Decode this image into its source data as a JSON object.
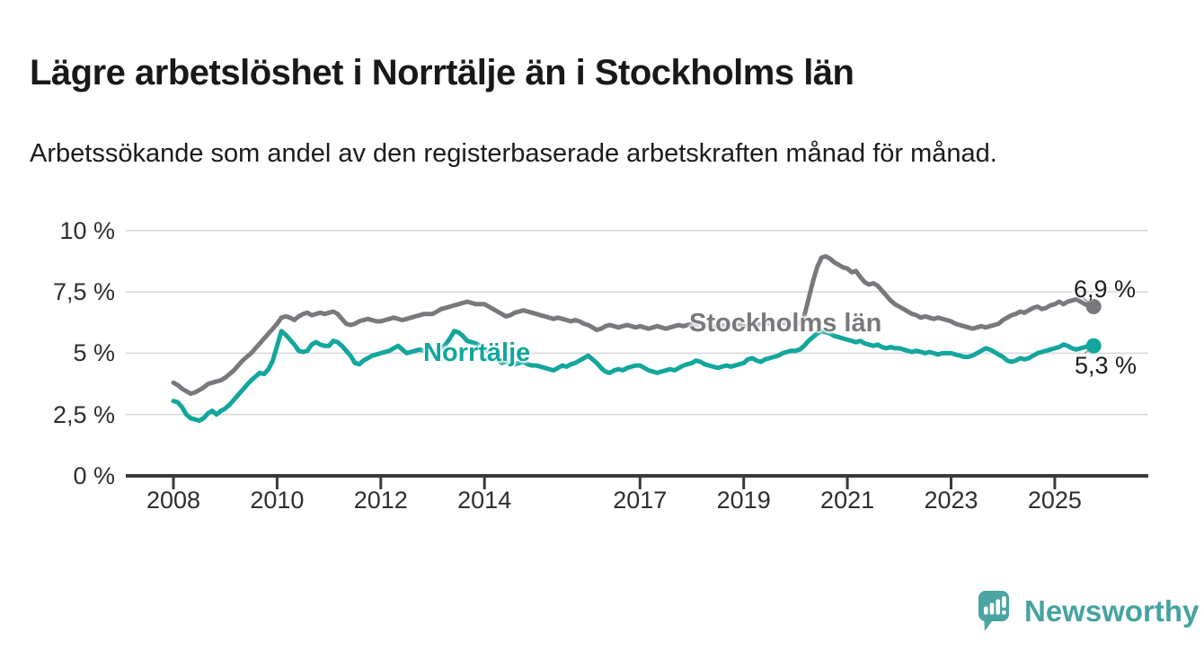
{
  "header": {
    "title": "Lägre arbetslöshet i Norrtälje än i Stockholms län",
    "subtitle": "Arbetssökande som andel av den registerbaserade arbetskraften månad för månad."
  },
  "chart_data": {
    "type": "line",
    "title": "Lägre arbetslöshet i Norrtälje än i Stockholms län",
    "subtitle": "Arbetssökande som andel av den registerbaserade arbetskraften månad för månad.",
    "unit": "%",
    "grid": true,
    "grid_color": "#d9d9d9",
    "axis_color": "#3a3a3a",
    "legend_position": "inline-labels",
    "x_start": 2008,
    "points_per_year": 12,
    "xlim": [
      2008,
      2026
    ],
    "ylim": [
      0,
      10
    ],
    "x_ticks": [
      {
        "year": 2008,
        "label": "2008"
      },
      {
        "year": 2010,
        "label": "2010"
      },
      {
        "year": 2012,
        "label": "2012"
      },
      {
        "year": 2014,
        "label": "2014"
      },
      {
        "year": 2017,
        "label": "2017"
      },
      {
        "year": 2019,
        "label": "2019"
      },
      {
        "year": 2021,
        "label": "2021"
      },
      {
        "year": 2023,
        "label": "2023"
      },
      {
        "year": 2025,
        "label": "2025"
      }
    ],
    "y_ticks": [
      {
        "value": 0,
        "label": "0 %"
      },
      {
        "value": 2.5,
        "label": "2,5 %"
      },
      {
        "value": 5,
        "label": "5 %"
      },
      {
        "value": 7.5,
        "label": "7,5 %"
      },
      {
        "value": 10,
        "label": "10 %"
      }
    ],
    "series": [
      {
        "name": "Stockholms län",
        "color": "#7a787d",
        "end_label": "6,9 %",
        "end_value": 6.9,
        "values": [
          3.8,
          3.7,
          3.55,
          3.45,
          3.35,
          3.4,
          3.5,
          3.6,
          3.75,
          3.8,
          3.85,
          3.9,
          4.0,
          4.15,
          4.3,
          4.5,
          4.7,
          4.85,
          5.0,
          5.2,
          5.4,
          5.6,
          5.8,
          6.0,
          6.2,
          6.45,
          6.5,
          6.45,
          6.35,
          6.5,
          6.6,
          6.65,
          6.55,
          6.6,
          6.65,
          6.6,
          6.65,
          6.7,
          6.6,
          6.4,
          6.2,
          6.15,
          6.2,
          6.3,
          6.35,
          6.4,
          6.35,
          6.3,
          6.3,
          6.35,
          6.4,
          6.45,
          6.4,
          6.35,
          6.4,
          6.45,
          6.5,
          6.55,
          6.6,
          6.6,
          6.6,
          6.7,
          6.8,
          6.85,
          6.9,
          6.95,
          7.0,
          7.05,
          7.1,
          7.05,
          7.0,
          7.0,
          7.0,
          6.9,
          6.8,
          6.7,
          6.6,
          6.5,
          6.55,
          6.65,
          6.7,
          6.75,
          6.7,
          6.65,
          6.6,
          6.55,
          6.5,
          6.45,
          6.4,
          6.45,
          6.4,
          6.35,
          6.3,
          6.35,
          6.3,
          6.2,
          6.15,
          6.05,
          5.95,
          6.0,
          6.1,
          6.15,
          6.1,
          6.05,
          6.1,
          6.15,
          6.1,
          6.05,
          6.1,
          6.05,
          6.0,
          6.05,
          6.1,
          6.05,
          6.0,
          6.05,
          6.1,
          6.15,
          6.1,
          6.15,
          6.2,
          6.15,
          6.1,
          6.15,
          6.1,
          6.05,
          6.1,
          6.15,
          6.1,
          6.15,
          6.2,
          6.15,
          6.1,
          6.15,
          6.2,
          6.15,
          6.2,
          6.25,
          6.2,
          6.15,
          6.2,
          6.25,
          6.2,
          6.15,
          6.2,
          6.2,
          6.5,
          7.2,
          7.9,
          8.5,
          8.9,
          8.95,
          8.85,
          8.7,
          8.6,
          8.5,
          8.45,
          8.3,
          8.35,
          8.1,
          7.9,
          7.8,
          7.85,
          7.75,
          7.55,
          7.35,
          7.15,
          7.0,
          6.9,
          6.8,
          6.7,
          6.6,
          6.55,
          6.45,
          6.5,
          6.45,
          6.4,
          6.45,
          6.4,
          6.35,
          6.3,
          6.2,
          6.15,
          6.1,
          6.05,
          6.0,
          6.05,
          6.1,
          6.05,
          6.1,
          6.15,
          6.2,
          6.35,
          6.45,
          6.55,
          6.6,
          6.7,
          6.65,
          6.75,
          6.85,
          6.9,
          6.8,
          6.85,
          6.95,
          7.0,
          7.1,
          7.0,
          7.1,
          7.15,
          7.2,
          7.1,
          7.0,
          6.95,
          6.9
        ]
      },
      {
        "name": "Norrtälje",
        "color": "#13a69c",
        "end_label": "5,3 %",
        "end_value": 5.3,
        "values": [
          3.05,
          3.0,
          2.8,
          2.5,
          2.35,
          2.3,
          2.25,
          2.35,
          2.55,
          2.65,
          2.5,
          2.65,
          2.75,
          2.9,
          3.1,
          3.3,
          3.5,
          3.7,
          3.9,
          4.05,
          4.2,
          4.15,
          4.35,
          4.7,
          5.3,
          5.9,
          5.75,
          5.55,
          5.35,
          5.1,
          5.05,
          5.1,
          5.35,
          5.45,
          5.35,
          5.3,
          5.3,
          5.5,
          5.45,
          5.3,
          5.1,
          4.9,
          4.6,
          4.55,
          4.7,
          4.8,
          4.9,
          4.95,
          5.0,
          5.05,
          5.1,
          5.2,
          5.3,
          5.15,
          5.0,
          5.05,
          5.1,
          5.15,
          5.1,
          5.05,
          5.05,
          5.1,
          5.2,
          5.35,
          5.6,
          5.9,
          5.85,
          5.7,
          5.5,
          5.45,
          5.4,
          5.3,
          5.2,
          5.05,
          4.9,
          4.75,
          4.6,
          4.65,
          4.7,
          4.55,
          4.6,
          4.65,
          4.55,
          4.5,
          4.5,
          4.45,
          4.4,
          4.35,
          4.3,
          4.4,
          4.5,
          4.45,
          4.55,
          4.6,
          4.7,
          4.8,
          4.9,
          4.75,
          4.6,
          4.4,
          4.25,
          4.2,
          4.3,
          4.35,
          4.3,
          4.4,
          4.45,
          4.5,
          4.5,
          4.4,
          4.3,
          4.25,
          4.2,
          4.25,
          4.3,
          4.35,
          4.3,
          4.4,
          4.5,
          4.55,
          4.6,
          4.7,
          4.65,
          4.55,
          4.5,
          4.45,
          4.4,
          4.45,
          4.5,
          4.45,
          4.5,
          4.55,
          4.6,
          4.75,
          4.8,
          4.7,
          4.65,
          4.75,
          4.8,
          4.85,
          4.9,
          5.0,
          5.05,
          5.1,
          5.1,
          5.15,
          5.3,
          5.5,
          5.65,
          5.8,
          5.9,
          5.85,
          5.8,
          5.7,
          5.65,
          5.6,
          5.55,
          5.5,
          5.45,
          5.5,
          5.4,
          5.35,
          5.3,
          5.35,
          5.25,
          5.2,
          5.25,
          5.2,
          5.2,
          5.15,
          5.1,
          5.05,
          5.1,
          5.05,
          5.0,
          5.05,
          5.0,
          4.95,
          5.0,
          5.0,
          5.0,
          4.95,
          4.9,
          4.85,
          4.85,
          4.9,
          5.0,
          5.1,
          5.2,
          5.15,
          5.05,
          4.95,
          4.85,
          4.7,
          4.65,
          4.7,
          4.8,
          4.75,
          4.8,
          4.9,
          5.0,
          5.05,
          5.1,
          5.15,
          5.2,
          5.25,
          5.35,
          5.3,
          5.2,
          5.15,
          5.2,
          5.25,
          5.3,
          5.3
        ]
      }
    ]
  },
  "branding": {
    "logo_text": "Newsworthy",
    "logo_icon": "bar-chart-speech-bubble-icon",
    "logo_color": "#4aa5a2",
    "text_color": "#45a3a0"
  }
}
